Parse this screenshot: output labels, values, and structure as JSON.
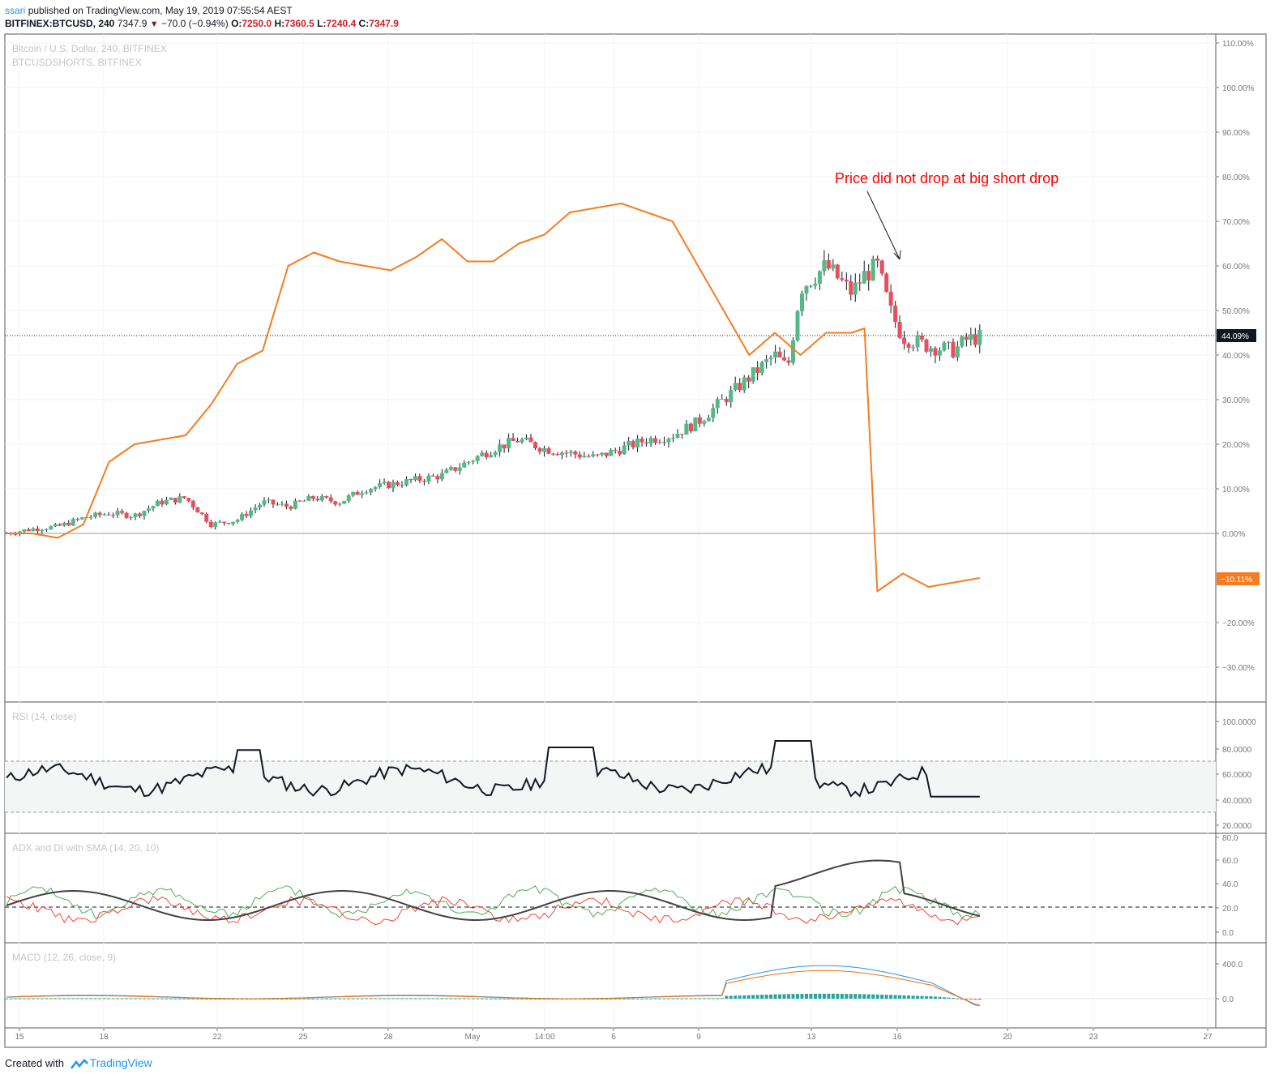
{
  "header": {
    "publisher": "ssari",
    "published_text": "published on TradingView.com, May 19, 2019 07:55:54 AEST",
    "symbol": "BITFINEX:BTCUSD, 240",
    "last": "7347.9",
    "change": "−70.0 (−0.94%)",
    "o_label": "O:",
    "o_value": "7250.0",
    "h_label": "H:",
    "h_value": "7360.5",
    "l_label": "L:",
    "l_value": "7240.4",
    "c_label": "C:",
    "c_value": "7347.9"
  },
  "main_pane": {
    "legend_main": "Bitcoin / U.S. Dollar, 240, BITFINEX",
    "legend_compare": "BTCUSDSHORTS, BITFINEX",
    "annotation": "Price did not drop at big short drop",
    "price_badge": "44.09%",
    "shorts_badge": "−10.11%",
    "y_ticks": [
      "110.00%",
      "100.00%",
      "90.00%",
      "80.00%",
      "70.00%",
      "60.00%",
      "50.00%",
      "40.00%",
      "30.00%",
      "20.00%",
      "10.00%",
      "0.00%",
      "−20.00%",
      "−30.00%"
    ]
  },
  "rsi_pane": {
    "label": "RSI (14, close)",
    "y_ticks": [
      "100.0000",
      "80.0000",
      "60.0000",
      "40.0000",
      "20.0000"
    ]
  },
  "adx_pane": {
    "label": "ADX and DI with SMA (14, 20, 10)",
    "y_ticks": [
      "80.0",
      "60.0",
      "40.0",
      "20.0",
      "0.0"
    ]
  },
  "macd_pane": {
    "label": "MACD (12, 26, close, 9)",
    "y_ticks": [
      "400.0",
      "0.0"
    ]
  },
  "time_axis": [
    "15",
    "18",
    "22",
    "25",
    "28",
    "May",
    "14:00",
    "6",
    "9",
    "13",
    "16",
    "20",
    "23",
    "27"
  ],
  "footer": {
    "created_with": "Created with",
    "brand": "TradingView"
  },
  "colors": {
    "up": "#53b987",
    "down": "#eb4d5c",
    "shorts": "#f57c22",
    "annotation": "#ff0000",
    "rsi": "#131722",
    "adx": "#424242",
    "di_plus": "#4caf50",
    "di_minus": "#f44336",
    "macd": "#2196f3",
    "signal": "#ff6d00"
  },
  "chart_data": {
    "type": "line",
    "x_ticks": [
      "15",
      "18",
      "22",
      "25",
      "28",
      "May",
      "14:00",
      "6",
      "9",
      "13",
      "16",
      "20",
      "23",
      "27"
    ],
    "y_unit": "% change",
    "ylim": [
      -37,
      112
    ],
    "series": [
      {
        "name": "Bitcoin / U.S. Dollar, 240, BITFINEX",
        "points": [
          [
            0,
            0
          ],
          [
            1,
            1
          ],
          [
            2,
            1.5
          ],
          [
            3,
            3.5
          ],
          [
            4,
            4.5
          ],
          [
            5,
            4
          ],
          [
            6,
            7
          ],
          [
            7,
            8
          ],
          [
            8,
            2
          ],
          [
            9,
            3
          ],
          [
            10,
            7
          ],
          [
            11,
            6
          ],
          [
            12,
            8
          ],
          [
            13,
            7
          ],
          [
            14,
            10
          ],
          [
            15,
            11
          ],
          [
            16,
            12
          ],
          [
            17,
            13
          ],
          [
            18,
            16
          ],
          [
            19,
            19
          ],
          [
            20,
            21
          ],
          [
            21,
            19
          ],
          [
            22,
            18
          ],
          [
            23,
            17
          ],
          [
            24,
            19
          ],
          [
            25,
            21
          ],
          [
            26,
            22
          ],
          [
            27,
            25
          ],
          [
            28,
            30
          ],
          [
            29,
            35
          ],
          [
            30,
            40
          ],
          [
            30.5,
            37
          ],
          [
            31,
            55
          ],
          [
            32,
            60
          ],
          [
            33,
            54
          ],
          [
            33.5,
            58
          ],
          [
            34,
            60
          ],
          [
            34.5,
            50
          ],
          [
            35,
            44
          ],
          [
            36,
            42
          ],
          [
            37,
            41
          ],
          [
            37.5,
            43.5
          ],
          [
            38,
            44
          ]
        ],
        "last_label": "44.09%"
      },
      {
        "name": "BTCUSDSHORTS, BITFINEX",
        "points": [
          [
            0,
            0
          ],
          [
            1,
            0
          ],
          [
            2,
            -1
          ],
          [
            3,
            2
          ],
          [
            4,
            16
          ],
          [
            5,
            20
          ],
          [
            6,
            21
          ],
          [
            7,
            22
          ],
          [
            8,
            29
          ],
          [
            9,
            38
          ],
          [
            10,
            41
          ],
          [
            11,
            60
          ],
          [
            12,
            63
          ],
          [
            13,
            61
          ],
          [
            14,
            60
          ],
          [
            15,
            59
          ],
          [
            16,
            62
          ],
          [
            17,
            66
          ],
          [
            18,
            61
          ],
          [
            19,
            61
          ],
          [
            20,
            65
          ],
          [
            21,
            67
          ],
          [
            22,
            72
          ],
          [
            23,
            73
          ],
          [
            24,
            74
          ],
          [
            25,
            72
          ],
          [
            26,
            70
          ],
          [
            27,
            60
          ],
          [
            28,
            50
          ],
          [
            29,
            40
          ],
          [
            30,
            45
          ],
          [
            31,
            40
          ],
          [
            32,
            45
          ],
          [
            33,
            45
          ],
          [
            33.5,
            46
          ],
          [
            34,
            -13
          ],
          [
            35,
            -9
          ],
          [
            36,
            -12
          ],
          [
            37,
            -11
          ],
          [
            38,
            -10
          ]
        ],
        "last_label": "−10.11%"
      }
    ],
    "panes": [
      {
        "name": "RSI (14, close)",
        "ylim": [
          20,
          100
        ],
        "bands": [
          30,
          70
        ]
      },
      {
        "name": "ADX and DI with SMA (14, 20, 10)",
        "ylim": [
          0,
          80
        ],
        "reference": 20
      },
      {
        "name": "MACD (12, 26, close, 9)",
        "ylim": [
          -100,
          450
        ]
      }
    ],
    "annotations": [
      {
        "text": "Price did not drop at big short drop",
        "x": 33.5,
        "y": 61
      }
    ]
  }
}
